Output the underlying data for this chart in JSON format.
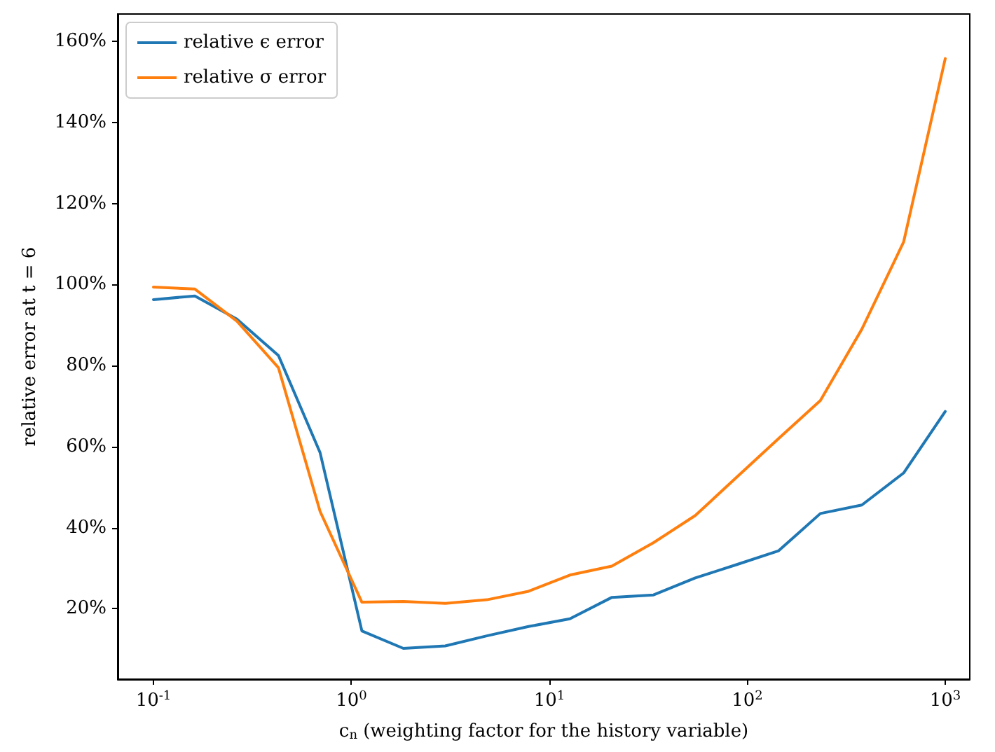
{
  "chart_data": {
    "type": "line",
    "xlabel": "c$_{n}$ (weighting factor for the history variable)",
    "ylabel": "relative error at t = 6",
    "log": "x",
    "grid": false,
    "legend": "top left",
    "marker": "none",
    "line_style": "solid",
    "x": [
      0.1,
      0.162,
      0.264,
      0.428,
      0.695,
      1.13,
      1.83,
      2.98,
      4.83,
      7.85,
      12.7,
      20.7,
      33.6,
      54.6,
      88.6,
      144,
      234,
      379,
      616,
      1000
    ],
    "xlim": [
      0.066,
      1330
    ],
    "ylim": [
      2.6,
      166.8
    ],
    "xticks": [
      {
        "value": 0.1,
        "label": "10$^{-1}$"
      },
      {
        "value": 1,
        "label": "10$^{0}$"
      },
      {
        "value": 10,
        "label": "10$^{1}$"
      },
      {
        "value": 100,
        "label": "10$^{2}$"
      },
      {
        "value": 1000,
        "label": "10$^{3}$"
      }
    ],
    "yticks": [
      {
        "value": 20,
        "label": "20%"
      },
      {
        "value": 40,
        "label": "40%"
      },
      {
        "value": 60,
        "label": "60%"
      },
      {
        "value": 80,
        "label": "80%"
      },
      {
        "value": 100,
        "label": "100%"
      },
      {
        "value": 120,
        "label": "120%"
      },
      {
        "value": 140,
        "label": "140%"
      },
      {
        "value": 160,
        "label": "160%"
      }
    ],
    "series": [
      {
        "name": "relative ϵ error",
        "color": "#1f77b4",
        "values": [
          96.3,
          97.2,
          91.5,
          82.5,
          58.5,
          14.5,
          10.2,
          10.8,
          13.3,
          15.6,
          17.5,
          22.8,
          23.4,
          27.6,
          30.9,
          34.3,
          43.5,
          45.6,
          53.5,
          68.7
        ]
      },
      {
        "name": "relative σ error",
        "color": "#ff7f0e",
        "values": [
          99.4,
          98.9,
          91.0,
          79.5,
          44.0,
          21.6,
          21.8,
          21.3,
          22.2,
          24.3,
          28.3,
          30.5,
          36.3,
          43.0,
          52.5,
          62.0,
          71.4,
          89.0,
          110.5,
          155.8
        ]
      }
    ]
  }
}
